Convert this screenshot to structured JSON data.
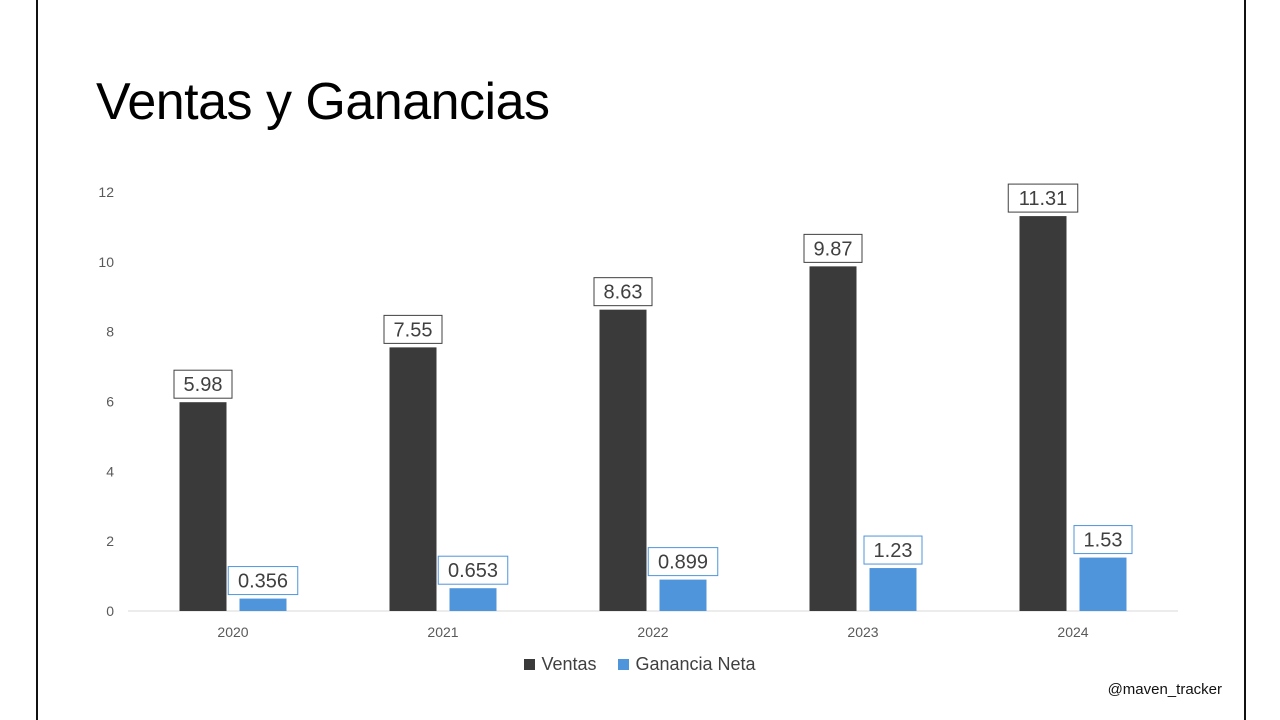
{
  "title": "Ventas y Ganancias",
  "handle": "@maven_tracker",
  "colors": {
    "ventas": "#3a3a3a",
    "ganancia": "#4f95db",
    "axis_text": "#595959",
    "baseline": "#d9d9d9"
  },
  "chart_data": {
    "type": "bar",
    "title": "Ventas y Ganancias",
    "categories": [
      "2020",
      "2021",
      "2022",
      "2023",
      "2024"
    ],
    "series": [
      {
        "name": "Ventas",
        "values": [
          5.98,
          7.55,
          8.63,
          9.87,
          11.31
        ],
        "labels": [
          "5.98",
          "7.55",
          "8.63",
          "9.87",
          "11.31"
        ],
        "color": "#3a3a3a"
      },
      {
        "name": "Ganancia Neta",
        "values": [
          0.356,
          0.653,
          0.899,
          1.23,
          1.53
        ],
        "labels": [
          "0.356",
          "0.653",
          "0.899",
          "1.23",
          "1.53"
        ],
        "color": "#4f95db"
      }
    ],
    "yticks": [
      "0",
      "2",
      "4",
      "6",
      "8",
      "10",
      "12"
    ],
    "ylim": [
      0,
      12
    ],
    "xlabel": "",
    "ylabel": "",
    "grid": false,
    "legend_position": "bottom"
  }
}
